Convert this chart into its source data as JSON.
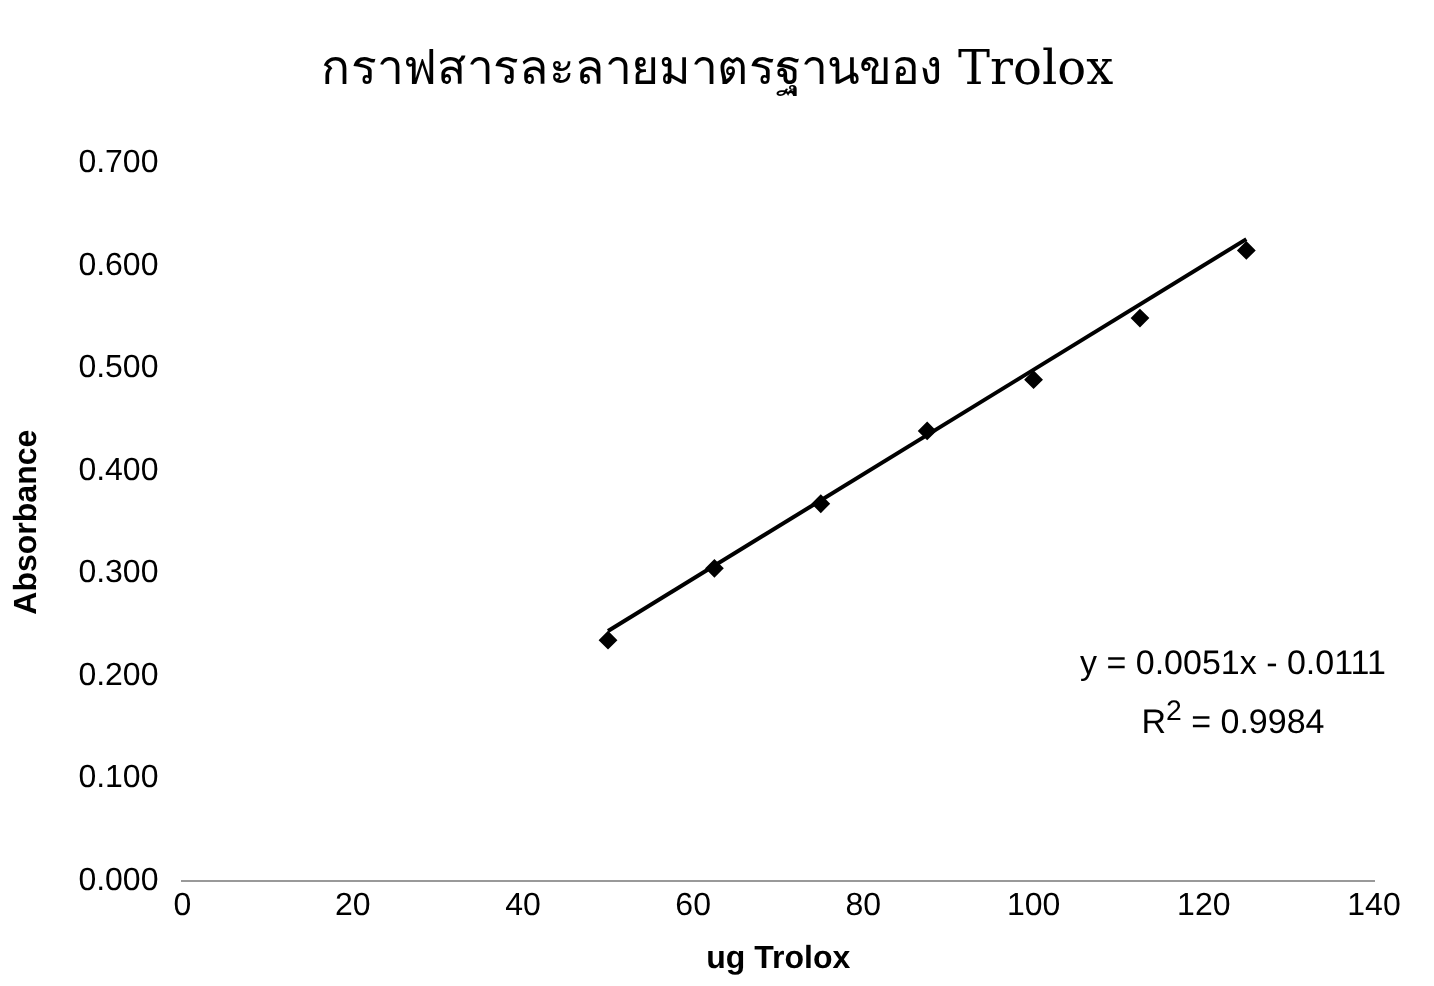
{
  "chart_data": {
    "type": "scatter",
    "title": "กราฟสารละลายมาตรฐานของ Trolox",
    "xlabel": "ug Trolox",
    "ylabel": "Absorbance",
    "xlim": [
      0,
      140
    ],
    "xticks": [
      0,
      20,
      40,
      60,
      80,
      100,
      120,
      140
    ],
    "ylim": [
      0,
      0.7
    ],
    "yticks": [
      {
        "value": 0,
        "label": "0.000"
      },
      {
        "value": 0.1,
        "label": "0.100"
      },
      {
        "value": 0.2,
        "label": "0.200"
      },
      {
        "value": 0.3,
        "label": "0.300"
      },
      {
        "value": 0.4,
        "label": "0.400"
      },
      {
        "value": 0.5,
        "label": "0.500"
      },
      {
        "value": 0.6,
        "label": "0.600"
      },
      {
        "value": 0.7,
        "label": "0.700"
      }
    ],
    "grid": false,
    "legend": false,
    "marker": "diamond",
    "series": [
      {
        "type": "scatter",
        "color": "#000000",
        "x": [
          50,
          62.5,
          75,
          87.5,
          100,
          112.5,
          125
        ],
        "values": [
          0.235,
          0.305,
          0.368,
          0.439,
          0.489,
          0.549,
          0.615
        ]
      },
      {
        "type": "line",
        "color": "#000000",
        "marker": "none",
        "x": [
          50,
          125
        ],
        "values": [
          0.244,
          0.626
        ]
      }
    ],
    "annotations": [
      "y = 0.0051x - 0.0111",
      "R$^{2}$ = 0.9984"
    ]
  }
}
